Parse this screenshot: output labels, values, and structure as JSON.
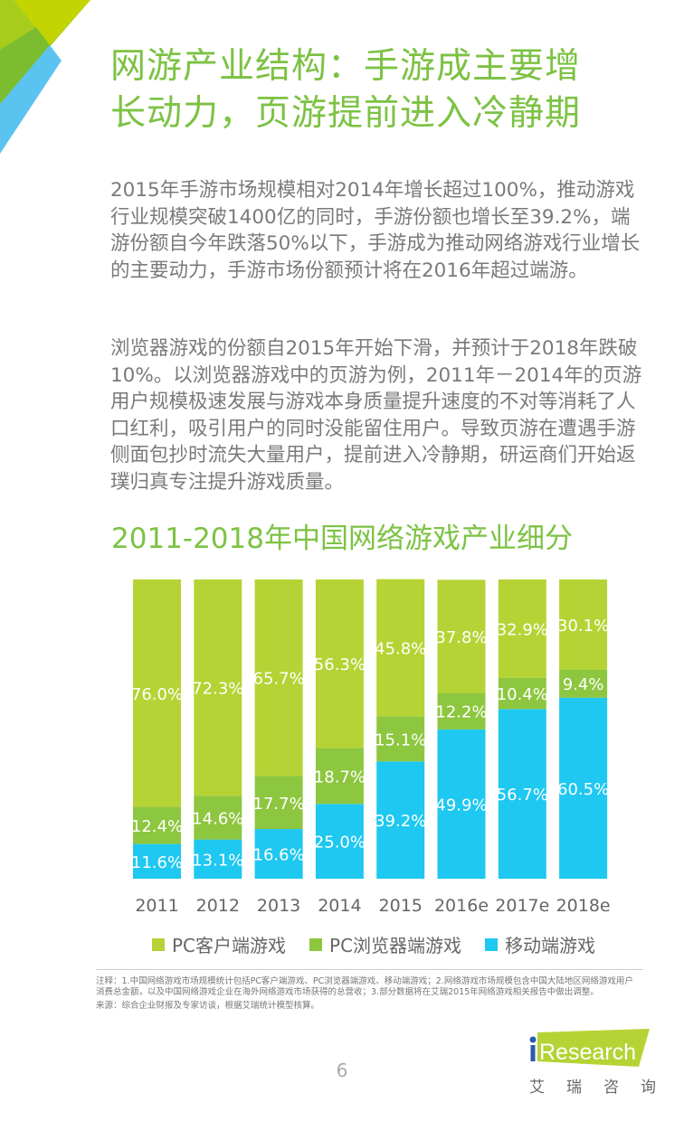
{
  "header": {
    "title_line1": "网游产业结构：手游成主要增",
    "title_line2": "长动力，页游提前进入冷静期"
  },
  "body": {
    "paragraph1": "2015年手游市场规模相对2014年增长超过100%，推动游戏行业规模突破1400亿的同时，手游份额也增长至39.2%，端游份额自今年跌落50%以下，手游成为推动网络游戏行业增长的主要动力，手游市场份额预计将在2016年超过端游。",
    "paragraph2": "浏览器游戏的份额自2015年开始下滑，并预计于2018年跌破10%。以浏览器游戏中的页游为例，2011年－2014年的页游用户规模极速发展与游戏本身质量提升速度的不对等消耗了人口红利，吸引用户的同时没能留住用户。导致页游在遭遇手游侧面包抄时流失大量用户，提前进入冷静期，研运商们开始返璞归真专注提升游戏质量。"
  },
  "chart_data": {
    "type": "bar",
    "stacked": true,
    "percent_stacked": true,
    "title": "2011-2018年中国网络游戏产业细分",
    "categories": [
      "2011",
      "2012",
      "2013",
      "2014",
      "2015",
      "2016e",
      "2017e",
      "2018e"
    ],
    "series": [
      {
        "name": "移动端游戏",
        "color": "#1ec8f0",
        "values": [
          11.6,
          13.1,
          16.6,
          25.0,
          39.2,
          49.9,
          56.7,
          60.5
        ]
      },
      {
        "name": "PC浏览器端游戏",
        "color": "#8dc63f",
        "values": [
          12.4,
          14.6,
          17.7,
          18.7,
          15.1,
          12.2,
          10.4,
          9.4
        ]
      },
      {
        "name": "PC客户端游戏",
        "color": "#b5d334",
        "values": [
          76.0,
          72.3,
          65.7,
          56.3,
          45.8,
          37.8,
          32.9,
          30.1
        ]
      }
    ],
    "legend_order": [
      "PC客户端游戏",
      "PC浏览器端游戏",
      "移动端游戏"
    ],
    "legend_placement": "bottom",
    "ylim": [
      0,
      100
    ],
    "grid": false,
    "data_label_suffix": "%"
  },
  "footnote": {
    "note": "注释：1.中国网络游戏市场规模统计包括PC客户端游戏、PC浏览器端游戏、移动端游戏；2.网络游戏市场规模包含中国大陆地区网络游戏用户消费总金额，以及中国网络游戏企业在海外网络游戏市场获得的总营收；3.部分数据将在艾瑞2015年网络游戏相关报告中做出调整。",
    "source": "来源：综合企业财报及专家访谈，根据艾瑞统计模型核算。"
  },
  "page_number": "6",
  "logo": {
    "text": "iResearch",
    "cn": [
      "艾",
      "瑞",
      "咨",
      "询"
    ],
    "color": "#b5d334"
  }
}
